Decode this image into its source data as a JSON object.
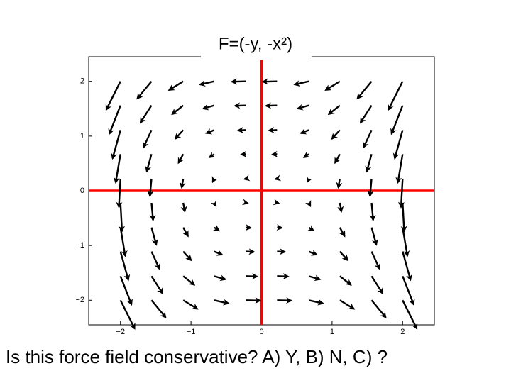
{
  "chart_data": {
    "type": "quiver",
    "title": "F=(-y, -x²)",
    "x": [
      -2,
      -1.56,
      -1.11,
      -0.67,
      -0.22,
      0.22,
      0.67,
      1.11,
      1.56,
      2
    ],
    "y": [
      -2,
      -1.56,
      -1.11,
      -0.67,
      -0.22,
      0.22,
      0.67,
      1.11,
      1.56,
      2
    ],
    "u": [
      [
        2,
        2,
        2,
        2,
        2,
        2,
        2,
        2,
        2,
        2
      ],
      [
        1.56,
        1.56,
        1.56,
        1.56,
        1.56,
        1.56,
        1.56,
        1.56,
        1.56,
        1.56
      ],
      [
        1.11,
        1.11,
        1.11,
        1.11,
        1.11,
        1.11,
        1.11,
        1.11,
        1.11,
        1.11
      ],
      [
        0.67,
        0.67,
        0.67,
        0.67,
        0.67,
        0.67,
        0.67,
        0.67,
        0.67,
        0.67
      ],
      [
        0.22,
        0.22,
        0.22,
        0.22,
        0.22,
        0.22,
        0.22,
        0.22,
        0.22,
        0.22
      ],
      [
        -0.22,
        -0.22,
        -0.22,
        -0.22,
        -0.22,
        -0.22,
        -0.22,
        -0.22,
        -0.22,
        -0.22
      ],
      [
        -0.67,
        -0.67,
        -0.67,
        -0.67,
        -0.67,
        -0.67,
        -0.67,
        -0.67,
        -0.67,
        -0.67
      ],
      [
        -1.11,
        -1.11,
        -1.11,
        -1.11,
        -1.11,
        -1.11,
        -1.11,
        -1.11,
        -1.11,
        -1.11
      ],
      [
        -1.56,
        -1.56,
        -1.56,
        -1.56,
        -1.56,
        -1.56,
        -1.56,
        -1.56,
        -1.56,
        -1.56
      ],
      [
        -2,
        -2,
        -2,
        -2,
        -2,
        -2,
        -2,
        -2,
        -2,
        -2
      ]
    ],
    "v": [
      [
        -4,
        -2.43,
        -1.23,
        -0.45,
        -0.05,
        -0.05,
        -0.45,
        -1.23,
        -2.43,
        -4
      ],
      [
        -4,
        -2.43,
        -1.23,
        -0.45,
        -0.05,
        -0.05,
        -0.45,
        -1.23,
        -2.43,
        -4
      ],
      [
        -4,
        -2.43,
        -1.23,
        -0.45,
        -0.05,
        -0.05,
        -0.45,
        -1.23,
        -2.43,
        -4
      ],
      [
        -4,
        -2.43,
        -1.23,
        -0.45,
        -0.05,
        -0.05,
        -0.45,
        -1.23,
        -2.43,
        -4
      ],
      [
        -4,
        -2.43,
        -1.23,
        -0.45,
        -0.05,
        -0.05,
        -0.45,
        -1.23,
        -2.43,
        -4
      ],
      [
        -4,
        -2.43,
        -1.23,
        -0.45,
        -0.05,
        -0.05,
        -0.45,
        -1.23,
        -2.43,
        -4
      ],
      [
        -4,
        -2.43,
        -1.23,
        -0.45,
        -0.05,
        -0.05,
        -0.45,
        -1.23,
        -2.43,
        -4
      ],
      [
        -4,
        -2.43,
        -1.23,
        -0.45,
        -0.05,
        -0.05,
        -0.45,
        -1.23,
        -2.43,
        -4
      ],
      [
        -4,
        -2.43,
        -1.23,
        -0.45,
        -0.05,
        -0.05,
        -0.45,
        -1.23,
        -2.43,
        -4
      ],
      [
        -4,
        -2.43,
        -1.23,
        -0.45,
        -0.05,
        -0.05,
        -0.45,
        -1.23,
        -2.43,
        -4
      ]
    ],
    "color": "#000000",
    "axis_line_color": "#ff0000",
    "xlim": [
      -2.45,
      2.45
    ],
    "ylim": [
      -2.45,
      2.45
    ],
    "xticks": [
      {
        "value": -2,
        "label": "−2"
      },
      {
        "value": -1,
        "label": "−1"
      },
      0,
      1,
      2
    ],
    "yticks": [
      {
        "value": -2,
        "label": "−2"
      },
      {
        "value": -1,
        "label": "−1"
      },
      0,
      1,
      2
    ]
  },
  "question": "Is this force field conservative?  A) Y,   B) N,  C) ?"
}
